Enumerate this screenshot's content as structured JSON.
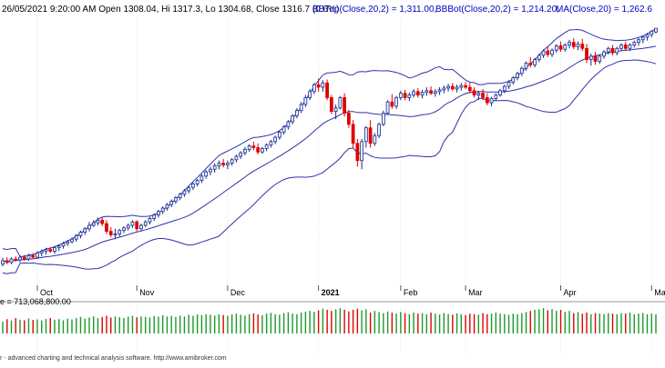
{
  "header": {
    "price_info": "26/05/2021 9:20:00 AM Open 1308.04, Hi 1317.3, Lo 1304.68, Close 1316.7 (0.6%)",
    "bbtop": "BBTop(Close,20,2) = 1,311.00,",
    "bbbot": "BBBot(Close,20,2) = 1,214.20,",
    "ma": "MA(Close,20) = 1,262.6"
  },
  "volume_label": "e = 713,068,800.00",
  "footer_text": "r - advanced charting and technical analysis software. http://www.amibroker.com",
  "colors": {
    "up": "#e8f4fb",
    "up_stroke": "#1a2a8c",
    "down": "#e00000",
    "band": "#3030b0",
    "vol_up": "#1a9a2a",
    "vol_down": "#e00000",
    "grid": "#cccccc"
  },
  "chart_data": {
    "type": "candlestick",
    "time_axis": {
      "labels": [
        "Oct",
        "Nov",
        "Dec",
        "2021",
        "Feb",
        "Mar",
        "Apr",
        "May"
      ],
      "start_index": [
        8,
        31,
        52,
        73,
        92,
        107,
        129,
        150
      ]
    },
    "series": [
      {
        "name": "BBTop(Close,20,2)"
      },
      {
        "name": "BBBot(Close,20,2)"
      },
      {
        "name": "MA(Close,20)"
      }
    ],
    "ohlc": [
      [
        770,
        785,
        765,
        778
      ],
      [
        778,
        786,
        770,
        774
      ],
      [
        774,
        786,
        770,
        782
      ],
      [
        782,
        788,
        776,
        780
      ],
      [
        780,
        790,
        774,
        786
      ],
      [
        786,
        792,
        778,
        782
      ],
      [
        782,
        794,
        778,
        790
      ],
      [
        790,
        796,
        782,
        786
      ],
      [
        786,
        800,
        784,
        796
      ],
      [
        796,
        804,
        788,
        800
      ],
      [
        800,
        808,
        792,
        804
      ],
      [
        804,
        810,
        796,
        800
      ],
      [
        800,
        812,
        794,
        808
      ],
      [
        808,
        816,
        800,
        812
      ],
      [
        812,
        822,
        806,
        818
      ],
      [
        818,
        826,
        812,
        822
      ],
      [
        822,
        832,
        818,
        828
      ],
      [
        828,
        840,
        822,
        836
      ],
      [
        836,
        848,
        830,
        844
      ],
      [
        844,
        856,
        838,
        852
      ],
      [
        852,
        868,
        846,
        860
      ],
      [
        860,
        872,
        856,
        866
      ],
      [
        866,
        878,
        860,
        872
      ],
      [
        872,
        880,
        858,
        864
      ],
      [
        864,
        872,
        840,
        846
      ],
      [
        846,
        856,
        832,
        838
      ],
      [
        838,
        852,
        828,
        840
      ],
      [
        840,
        852,
        834,
        848
      ],
      [
        848,
        858,
        842,
        854
      ],
      [
        854,
        864,
        848,
        860
      ],
      [
        860,
        872,
        854,
        868
      ],
      [
        868,
        872,
        846,
        852
      ],
      [
        852,
        864,
        846,
        860
      ],
      [
        860,
        872,
        856,
        868
      ],
      [
        868,
        880,
        862,
        876
      ],
      [
        876,
        888,
        870,
        884
      ],
      [
        884,
        896,
        878,
        892
      ],
      [
        892,
        904,
        886,
        900
      ],
      [
        900,
        912,
        894,
        908
      ],
      [
        908,
        920,
        902,
        916
      ],
      [
        916,
        928,
        910,
        924
      ],
      [
        924,
        936,
        918,
        932
      ],
      [
        932,
        944,
        926,
        940
      ],
      [
        940,
        952,
        934,
        948
      ],
      [
        948,
        960,
        942,
        956
      ],
      [
        956,
        968,
        950,
        964
      ],
      [
        964,
        978,
        958,
        974
      ],
      [
        974,
        988,
        968,
        984
      ],
      [
        984,
        996,
        976,
        990
      ],
      [
        990,
        1004,
        982,
        998
      ],
      [
        998,
        1010,
        990,
        1004
      ],
      [
        1004,
        1014,
        994,
        1000
      ],
      [
        1000,
        1010,
        990,
        1004
      ],
      [
        1004,
        1016,
        998,
        1012
      ],
      [
        1012,
        1024,
        1006,
        1020
      ],
      [
        1020,
        1032,
        1014,
        1028
      ],
      [
        1028,
        1042,
        1022,
        1036
      ],
      [
        1036,
        1048,
        1030,
        1044
      ],
      [
        1044,
        1054,
        1034,
        1040
      ],
      [
        1040,
        1050,
        1024,
        1030
      ],
      [
        1030,
        1042,
        1026,
        1038
      ],
      [
        1038,
        1050,
        1032,
        1046
      ],
      [
        1046,
        1058,
        1040,
        1054
      ],
      [
        1054,
        1068,
        1048,
        1064
      ],
      [
        1064,
        1080,
        1058,
        1076
      ],
      [
        1076,
        1092,
        1070,
        1088
      ],
      [
        1088,
        1104,
        1082,
        1100
      ],
      [
        1100,
        1118,
        1094,
        1114
      ],
      [
        1114,
        1132,
        1108,
        1126
      ],
      [
        1126,
        1146,
        1120,
        1140
      ],
      [
        1140,
        1162,
        1134,
        1156
      ],
      [
        1156,
        1176,
        1150,
        1170
      ],
      [
        1170,
        1190,
        1164,
        1186
      ],
      [
        1186,
        1200,
        1170,
        1180
      ],
      [
        1180,
        1196,
        1170,
        1190
      ],
      [
        1190,
        1198,
        1150,
        1156
      ],
      [
        1156,
        1162,
        1118,
        1124
      ],
      [
        1124,
        1140,
        1106,
        1132
      ],
      [
        1132,
        1160,
        1128,
        1156
      ],
      [
        1156,
        1166,
        1112,
        1120
      ],
      [
        1120,
        1128,
        1086,
        1094
      ],
      [
        1094,
        1104,
        1040,
        1050
      ],
      [
        1050,
        1060,
        996,
        1010
      ],
      [
        1010,
        1060,
        990,
        1054
      ],
      [
        1054,
        1090,
        1040,
        1086
      ],
      [
        1086,
        1104,
        1040,
        1050
      ],
      [
        1050,
        1074,
        1044,
        1068
      ],
      [
        1068,
        1098,
        1062,
        1094
      ],
      [
        1094,
        1126,
        1090,
        1120
      ],
      [
        1120,
        1150,
        1116,
        1146
      ],
      [
        1146,
        1164,
        1130,
        1136
      ],
      [
        1136,
        1160,
        1130,
        1156
      ],
      [
        1156,
        1172,
        1150,
        1166
      ],
      [
        1166,
        1174,
        1150,
        1156
      ],
      [
        1156,
        1168,
        1148,
        1162
      ],
      [
        1162,
        1176,
        1156,
        1170
      ],
      [
        1170,
        1178,
        1156,
        1162
      ],
      [
        1162,
        1174,
        1154,
        1168
      ],
      [
        1168,
        1180,
        1160,
        1172
      ],
      [
        1172,
        1182,
        1162,
        1166
      ],
      [
        1166,
        1176,
        1158,
        1170
      ],
      [
        1170,
        1180,
        1162,
        1174
      ],
      [
        1174,
        1184,
        1166,
        1178
      ],
      [
        1178,
        1188,
        1170,
        1182
      ],
      [
        1182,
        1190,
        1172,
        1176
      ],
      [
        1176,
        1186,
        1168,
        1180
      ],
      [
        1180,
        1190,
        1172,
        1184
      ],
      [
        1184,
        1192,
        1176,
        1180
      ],
      [
        1180,
        1190,
        1166,
        1172
      ],
      [
        1172,
        1180,
        1156,
        1162
      ],
      [
        1162,
        1172,
        1150,
        1166
      ],
      [
        1166,
        1176,
        1150,
        1156
      ],
      [
        1156,
        1166,
        1138,
        1144
      ],
      [
        1144,
        1158,
        1136,
        1154
      ],
      [
        1154,
        1166,
        1148,
        1162
      ],
      [
        1162,
        1176,
        1158,
        1172
      ],
      [
        1172,
        1186,
        1166,
        1182
      ],
      [
        1182,
        1196,
        1176,
        1192
      ],
      [
        1192,
        1206,
        1186,
        1202
      ],
      [
        1202,
        1216,
        1196,
        1212
      ],
      [
        1212,
        1228,
        1206,
        1224
      ],
      [
        1224,
        1240,
        1218,
        1236
      ],
      [
        1236,
        1250,
        1226,
        1232
      ],
      [
        1232,
        1248,
        1226,
        1244
      ],
      [
        1244,
        1258,
        1238,
        1254
      ],
      [
        1254,
        1268,
        1248,
        1264
      ],
      [
        1264,
        1274,
        1250,
        1256
      ],
      [
        1256,
        1270,
        1250,
        1266
      ],
      [
        1266,
        1280,
        1260,
        1276
      ],
      [
        1276,
        1286,
        1262,
        1268
      ],
      [
        1268,
        1282,
        1262,
        1278
      ],
      [
        1278,
        1290,
        1270,
        1284
      ],
      [
        1284,
        1294,
        1268,
        1274
      ],
      [
        1274,
        1286,
        1266,
        1280
      ],
      [
        1280,
        1292,
        1264,
        1270
      ],
      [
        1270,
        1280,
        1236,
        1244
      ],
      [
        1244,
        1258,
        1230,
        1252
      ],
      [
        1252,
        1262,
        1232,
        1240
      ],
      [
        1240,
        1256,
        1234,
        1252
      ],
      [
        1252,
        1266,
        1246,
        1262
      ],
      [
        1262,
        1274,
        1256,
        1270
      ],
      [
        1270,
        1278,
        1254,
        1260
      ],
      [
        1260,
        1274,
        1254,
        1270
      ],
      [
        1270,
        1282,
        1264,
        1278
      ],
      [
        1278,
        1286,
        1264,
        1270
      ],
      [
        1270,
        1282,
        1264,
        1278
      ],
      [
        1278,
        1288,
        1272,
        1284
      ],
      [
        1284,
        1294,
        1276,
        1290
      ],
      [
        1290,
        1300,
        1282,
        1296
      ],
      [
        1296,
        1306,
        1288,
        1302
      ],
      [
        1302,
        1312,
        1296,
        1310
      ],
      [
        1308.04,
        1317.3,
        1304.68,
        1316.7
      ]
    ],
    "volume": [
      430,
      520,
      470,
      560,
      500,
      480,
      540,
      490,
      510,
      470,
      530,
      560,
      500,
      520,
      480,
      540,
      510,
      560,
      600,
      540,
      580,
      620,
      560,
      600,
      640,
      580,
      620,
      590,
      560,
      610,
      640,
      590,
      620,
      600,
      580,
      630,
      610,
      660,
      620,
      640,
      600,
      650,
      620,
      680,
      640,
      690,
      660,
      700,
      680,
      650,
      700,
      670,
      640,
      690,
      720,
      680,
      650,
      700,
      730,
      690,
      660,
      720,
      750,
      700,
      680,
      740,
      770,
      720,
      700,
      760,
      790,
      820,
      780,
      840,
      900,
      860,
      820,
      880,
      920,
      860,
      800,
      860,
      900,
      840,
      880,
      760,
      820,
      780,
      740,
      800,
      760,
      720,
      780,
      740,
      700,
      760,
      720,
      740,
      700,
      760,
      720,
      690,
      740,
      710,
      680,
      730,
      700,
      670,
      720,
      700,
      680,
      740,
      700,
      720,
      760,
      720,
      700,
      680,
      720,
      700,
      740,
      780,
      820,
      860,
      880,
      920,
      840,
      880,
      820,
      860,
      780,
      820,
      740,
      780,
      720,
      760,
      700,
      740,
      720,
      700,
      740,
      720,
      700,
      740,
      720,
      760,
      700,
      720,
      740,
      700,
      720,
      700
    ]
  }
}
